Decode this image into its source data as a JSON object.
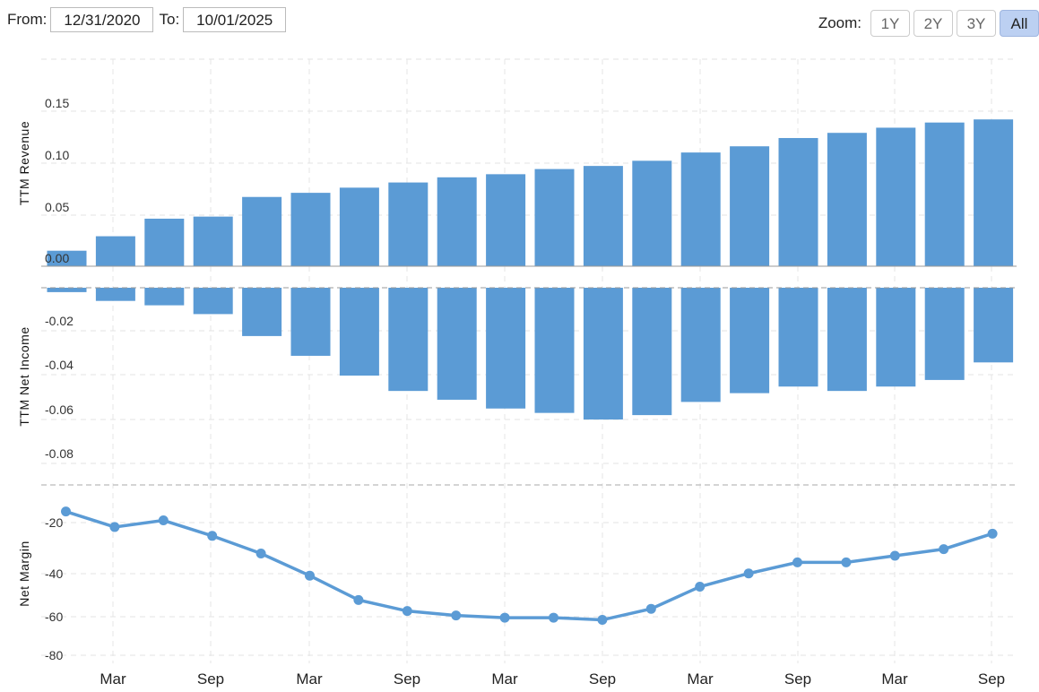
{
  "controls": {
    "from_label": "From:",
    "from_value": "12/31/2020",
    "to_label": "To:",
    "to_value": "10/01/2025",
    "zoom_label": "Zoom:",
    "zoom_buttons": [
      "1Y",
      "2Y",
      "3Y",
      "All"
    ],
    "zoom_active": "All"
  },
  "colors": {
    "bar": "#5b9bd5",
    "line": "#5b9bd5"
  },
  "chart_data": [
    {
      "type": "bar",
      "ylabel": "TTM Revenue",
      "ylim": [
        0,
        0.2
      ],
      "yticks": [
        "0.00",
        "0.05",
        "0.10",
        "0.15"
      ],
      "grid": true,
      "values": [
        0.015,
        0.029,
        0.046,
        0.048,
        0.067,
        0.071,
        0.076,
        0.081,
        0.086,
        0.089,
        0.094,
        0.097,
        0.102,
        0.11,
        0.116,
        0.124,
        0.129,
        0.134,
        0.139,
        0.142
      ]
    },
    {
      "type": "bar",
      "ylabel": "TTM Net Income",
      "ylim": [
        -0.08,
        0
      ],
      "yticks": [
        "-0.02",
        "-0.04",
        "-0.06",
        "-0.08"
      ],
      "grid": true,
      "values": [
        -0.002,
        -0.006,
        -0.008,
        -0.012,
        -0.022,
        -0.031,
        -0.04,
        -0.047,
        -0.051,
        -0.055,
        -0.057,
        -0.06,
        -0.058,
        -0.052,
        -0.048,
        -0.045,
        -0.047,
        -0.045,
        -0.042,
        -0.034
      ]
    },
    {
      "type": "line",
      "ylabel": "Net Margin",
      "ylim": [
        -80,
        0
      ],
      "yticks": [
        "-20",
        "-40",
        "-60",
        "-80"
      ],
      "grid": true,
      "values": [
        -15,
        -22,
        -19,
        -26,
        -34,
        -44,
        -55,
        -60,
        -62,
        -63,
        -63,
        -64,
        -59,
        -49,
        -43,
        -38,
        -38,
        -35,
        -32,
        -25
      ]
    }
  ],
  "x_axis": {
    "tick_labels": [
      "Mar",
      "Sep",
      "Mar",
      "Sep",
      "Mar",
      "Sep",
      "Mar",
      "Sep",
      "Mar",
      "Sep"
    ]
  }
}
